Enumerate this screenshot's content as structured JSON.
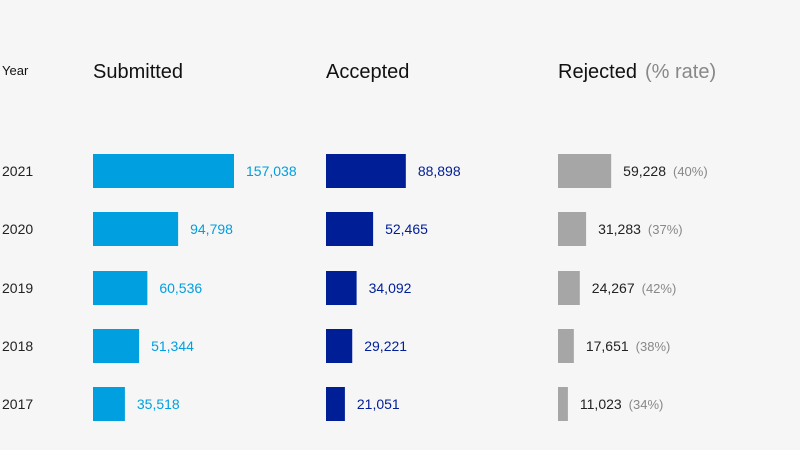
{
  "chart_data": {
    "type": "bar",
    "header": {
      "year": "Year",
      "submitted": "Submitted",
      "accepted": "Accepted",
      "rejected": "Rejected",
      "rejected_sub": "(% rate)"
    },
    "categories": [
      "2021",
      "2020",
      "2019",
      "2018",
      "2017"
    ],
    "series": [
      {
        "name": "Submitted",
        "color": "#009fdf",
        "values": [
          157038,
          94798,
          60536,
          51344,
          35518
        ],
        "labels": [
          "157,038",
          "94,798",
          "60,536",
          "51,344",
          "35,518"
        ]
      },
      {
        "name": "Accepted",
        "color": "#001e96",
        "values": [
          88898,
          52465,
          34092,
          29221,
          21051
        ],
        "labels": [
          "88,898",
          "52,465",
          "34,092",
          "29,221",
          "21,051"
        ]
      },
      {
        "name": "Rejected",
        "color": "#a6a6a6",
        "values": [
          59228,
          31283,
          24267,
          17651,
          11023
        ],
        "labels": [
          "59,228",
          "31,283",
          "24,267",
          "17,651",
          "11,023"
        ],
        "rates": [
          "(40%)",
          "(37%)",
          "(42%)",
          "(38%)",
          "(34%)"
        ]
      }
    ]
  }
}
